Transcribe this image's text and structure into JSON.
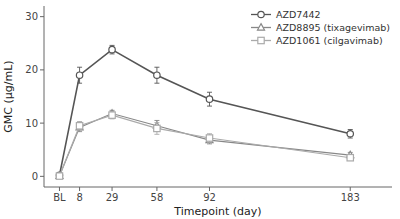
{
  "chart_data": {
    "type": "line",
    "xlabel": "Timepoint (day)",
    "ylabel": "GMC (μg/mL)",
    "x": [
      -5,
      8,
      29,
      58,
      92,
      183
    ],
    "xlim": [
      -15,
      210
    ],
    "xticks": [
      {
        "value": -5,
        "label": "BL"
      },
      8,
      29,
      58,
      92,
      183
    ],
    "ylim": [
      -2,
      32
    ],
    "yticks": [
      0,
      10,
      20,
      30
    ],
    "grid": false,
    "legend": "upper right",
    "series": [
      {
        "name": "AZD7442",
        "color": "#555555",
        "marker": "circle",
        "values": [
          0.2,
          19.0,
          23.8,
          19.0,
          14.5,
          8.0
        ],
        "error_low": [
          0.1,
          1.5,
          0.8,
          1.5,
          1.3,
          0.8
        ],
        "error_high": [
          0.1,
          1.5,
          0.8,
          1.5,
          1.3,
          0.8
        ]
      },
      {
        "name": "AZD8895 (tixagevimab)",
        "color": "#888888",
        "marker": "triangle",
        "values": [
          0.1,
          9.2,
          11.8,
          9.5,
          6.8,
          4.0
        ],
        "error_low": [
          0.05,
          0.8,
          0.6,
          1.0,
          0.7,
          0.5
        ],
        "error_high": [
          0.05,
          0.8,
          0.6,
          1.0,
          0.7,
          0.5
        ]
      },
      {
        "name": "AZD1061 (cilgavimab)",
        "color": "#aaaaaa",
        "marker": "square",
        "values": [
          0.05,
          9.5,
          11.5,
          9.0,
          7.2,
          3.5
        ],
        "error_low": [
          0.02,
          0.8,
          0.7,
          1.1,
          0.8,
          0.5
        ],
        "error_high": [
          0.02,
          0.8,
          0.7,
          1.1,
          0.8,
          0.5
        ]
      }
    ]
  }
}
